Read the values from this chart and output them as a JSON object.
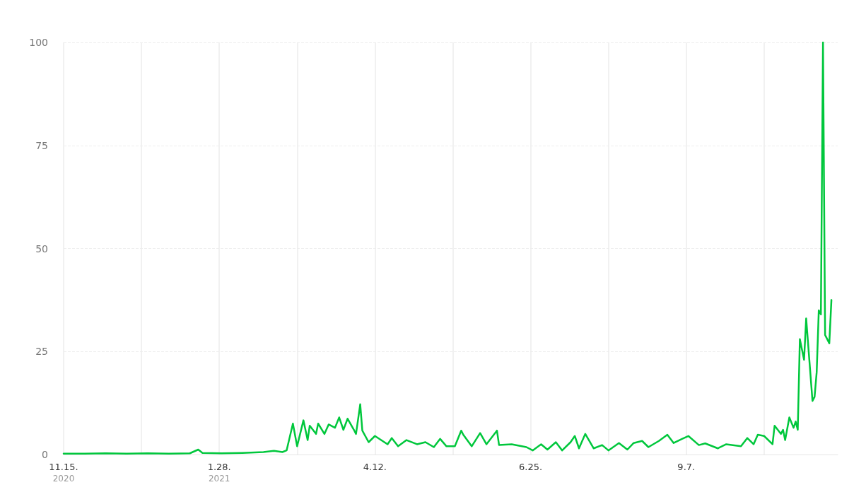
{
  "chart_data": {
    "type": "line",
    "x": [
      "2020-11-15",
      "2020-11-25",
      "2020-12-05",
      "2020-12-15",
      "2020-12-25",
      "2021-01-04",
      "2021-01-14",
      "2021-01-18",
      "2021-01-20",
      "2021-01-29",
      "2021-02-08",
      "2021-02-18",
      "2021-02-23",
      "2021-02-27",
      "2021-03-01",
      "2021-03-04",
      "2021-03-06",
      "2021-03-09",
      "2021-03-11",
      "2021-03-12",
      "2021-03-15",
      "2021-03-16",
      "2021-03-19",
      "2021-03-21",
      "2021-03-24",
      "2021-03-26",
      "2021-03-28",
      "2021-03-30",
      "2021-04-02",
      "2021-04-03",
      "2021-04-05",
      "2021-04-06",
      "2021-04-09",
      "2021-04-12",
      "2021-04-18",
      "2021-04-20",
      "2021-04-23",
      "2021-04-27",
      "2021-05-02",
      "2021-05-06",
      "2021-05-10",
      "2021-05-13",
      "2021-05-16",
      "2021-05-20",
      "2021-05-23",
      "2021-05-24",
      "2021-05-28",
      "2021-06-01",
      "2021-06-04",
      "2021-06-09",
      "2021-06-10",
      "2021-06-16",
      "2021-06-23",
      "2021-06-26",
      "2021-06-30",
      "2021-07-03",
      "2021-07-07",
      "2021-07-10",
      "2021-07-14",
      "2021-07-16",
      "2021-07-18",
      "2021-07-21",
      "2021-07-25",
      "2021-07-29",
      "2021-08-01",
      "2021-08-06",
      "2021-08-10",
      "2021-08-13",
      "2021-08-17",
      "2021-08-20",
      "2021-08-25",
      "2021-08-29",
      "2021-09-01",
      "2021-09-05",
      "2021-09-08",
      "2021-09-13",
      "2021-09-16",
      "2021-09-22",
      "2021-09-26",
      "2021-10-03",
      "2021-10-06",
      "2021-10-09",
      "2021-10-11",
      "2021-10-14",
      "2021-10-18",
      "2021-10-19",
      "2021-10-22",
      "2021-10-23",
      "2021-10-24",
      "2021-10-26",
      "2021-10-28",
      "2021-10-29",
      "2021-10-30",
      "2021-10-31",
      "2021-11-02",
      "2021-11-03",
      "2021-11-06",
      "2021-11-07",
      "2021-11-08",
      "2021-11-09",
      "2021-11-10",
      "2021-11-11",
      "2021-11-12",
      "2021-11-14",
      "2021-11-15"
    ],
    "series": [
      {
        "color": "#00c73c",
        "values": [
          0.2,
          0.2,
          0.3,
          0.2,
          0.3,
          0.2,
          0.3,
          1.2,
          0.4,
          0.3,
          0.4,
          0.6,
          0.9,
          0.6,
          1.0,
          7.5,
          2,
          8.3,
          3.5,
          7,
          5,
          7.5,
          5,
          7.3,
          6.5,
          9,
          6,
          8.7,
          6,
          5,
          12.2,
          5.8,
          3,
          4.5,
          2.5,
          4,
          2,
          3.5,
          2.5,
          3,
          1.8,
          3.8,
          2,
          2,
          5.8,
          4.8,
          2,
          5.2,
          2.5,
          5.8,
          2.3,
          2.5,
          1.8,
          1,
          2.5,
          1.2,
          3,
          1,
          3,
          4.5,
          1.5,
          5,
          1.5,
          2.3,
          1,
          2.8,
          1.2,
          2.8,
          3.3,
          1.8,
          3.3,
          4.8,
          2.8,
          3.8,
          4.5,
          2.3,
          2.7,
          1.5,
          2.5,
          2,
          4,
          2.5,
          4.8,
          4.5,
          2.5,
          7,
          5,
          6,
          3.5,
          9,
          6.5,
          8,
          6,
          28,
          23,
          33,
          13,
          14,
          20,
          35,
          34,
          100,
          29,
          27,
          37.5
        ]
      }
    ],
    "xlim": [
      "2020-11-15",
      "2021-11-18"
    ],
    "xticks": [
      {
        "value": "2020-11-15",
        "label": "11.15.\n2020"
      },
      {
        "value": "2020-12-22",
        "label": null
      },
      {
        "value": "2021-01-28",
        "label": "1.28.\n2021"
      },
      {
        "value": "2021-03-06",
        "label": null
      },
      {
        "value": "2021-04-12",
        "label": "4.12."
      },
      {
        "value": "2021-05-19",
        "label": null
      },
      {
        "value": "2021-06-25",
        "label": "6.25."
      },
      {
        "value": "2021-08-01",
        "label": null
      },
      {
        "value": "2021-09-07",
        "label": "9.7."
      },
      {
        "value": "2021-10-14",
        "label": null
      }
    ],
    "ylim": [
      0,
      100
    ],
    "yticks": [
      0,
      25,
      50,
      75,
      100
    ],
    "grid": true,
    "marker": "none",
    "line_style": "solid"
  }
}
